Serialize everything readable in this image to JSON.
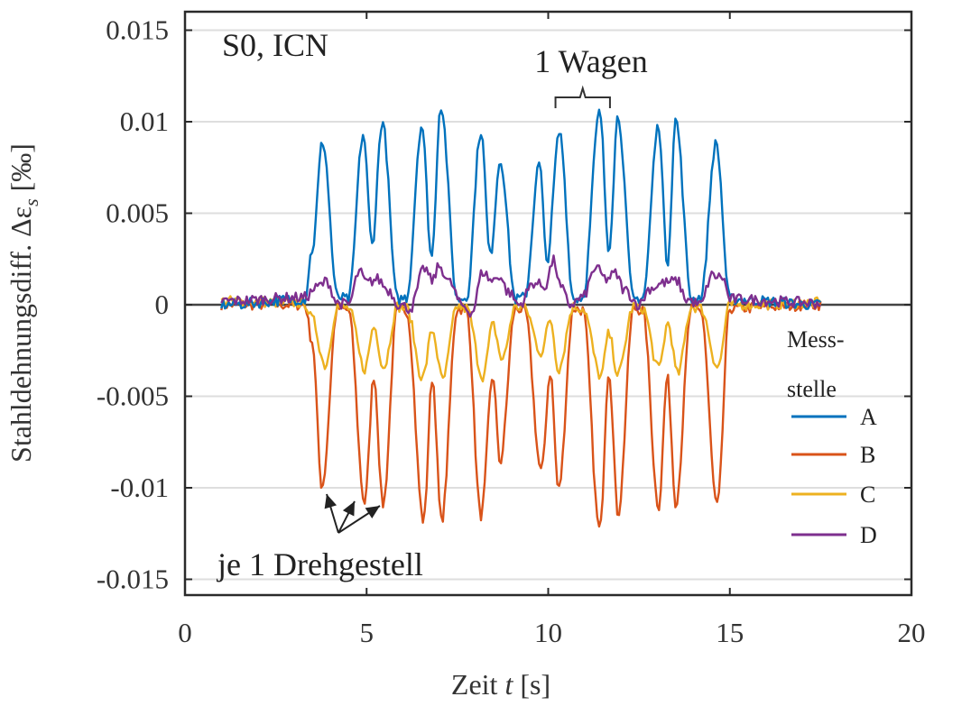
{
  "chart_data": {
    "type": "line",
    "title": "",
    "panel_label": "S0, ICN",
    "xlabel": "Zeit t [s]",
    "xlabel_parts": {
      "pre": "Zeit ",
      "var": "t",
      "post": " [s]"
    },
    "ylabel": "Stahldehnungsdiff. Δε_s [‰]",
    "ylabel_parts": {
      "pre": "Stahldehnungsdiff. Δε",
      "sub": "s",
      "post": " [‰]"
    },
    "xlim": [
      0,
      20
    ],
    "ylim": [
      -0.016,
      0.016
    ],
    "xticks": [
      0,
      5,
      10,
      15,
      20
    ],
    "xtick_labels": [
      "0",
      "5",
      "10",
      "15",
      "20"
    ],
    "yticks": [
      0.015,
      0.01,
      0.005,
      0,
      -0.005,
      -0.01,
      -0.015
    ],
    "ytick_labels": [
      "0.015",
      "0.01",
      "0.005",
      "0",
      "-0.005",
      "-0.01",
      "-0.015"
    ],
    "grid": true,
    "legend": {
      "title_line1": "Mess-",
      "title_line2": "stelle",
      "placement": "right-middle",
      "boxed": false
    },
    "annotations": {
      "wagen": "1 Wagen",
      "wagen_brace_x": [
        10.2,
        11.7
      ],
      "drehgestell": "je 1 Drehgestell",
      "drehgestell_targets": [
        [
          3.8,
          -0.0104
        ],
        [
          4.7,
          -0.0108
        ],
        [
          5.3,
          -0.011
        ]
      ]
    },
    "x_range_data": [
      1.0,
      17.5
    ],
    "series": [
      {
        "name": "A",
        "color": "#0072BD",
        "keypoints": [
          [
            1.0,
            0
          ],
          [
            3.3,
            0.0003
          ],
          [
            3.5,
            0.003
          ],
          [
            3.79,
            0.0089
          ],
          [
            4.2,
            0.0004
          ],
          [
            4.5,
            0.0003
          ],
          [
            4.91,
            0.0093
          ],
          [
            5.15,
            0.0033
          ],
          [
            5.43,
            0.01
          ],
          [
            5.85,
            0.0003
          ],
          [
            6.1,
            0.0004
          ],
          [
            6.52,
            0.0098
          ],
          [
            6.79,
            0.0026
          ],
          [
            7.04,
            0.0109
          ],
          [
            7.5,
            0.0003
          ],
          [
            7.75,
            0.0004
          ],
          [
            8.15,
            0.0095
          ],
          [
            8.4,
            0.0027
          ],
          [
            8.68,
            0.0079
          ],
          [
            9.1,
            0.0003
          ],
          [
            9.35,
            0.0004
          ],
          [
            9.76,
            0.0077
          ],
          [
            9.96,
            0.0024
          ],
          [
            10.31,
            0.0094
          ],
          [
            10.7,
            0.0003
          ],
          [
            10.95,
            0.0004
          ],
          [
            11.42,
            0.0105
          ],
          [
            11.67,
            0.0031
          ],
          [
            11.92,
            0.0103
          ],
          [
            12.35,
            0.0003
          ],
          [
            12.6,
            0.0004
          ],
          [
            13.04,
            0.0098
          ],
          [
            13.28,
            0.0023
          ],
          [
            13.51,
            0.0101
          ],
          [
            13.95,
            0.0003
          ],
          [
            14.2,
            0.0004
          ],
          [
            14.62,
            0.0088
          ],
          [
            15.0,
            0.0003
          ],
          [
            17.5,
            0
          ]
        ]
      },
      {
        "name": "B",
        "color": "#D95319",
        "keypoints": [
          [
            1.0,
            0
          ],
          [
            3.3,
            0
          ],
          [
            3.5,
            -0.002
          ],
          [
            3.77,
            -0.0099
          ],
          [
            4.2,
            -0.0002
          ],
          [
            4.5,
            -0.0003
          ],
          [
            4.95,
            -0.0108
          ],
          [
            5.2,
            -0.0039
          ],
          [
            5.45,
            -0.0109
          ],
          [
            5.85,
            -0.0002
          ],
          [
            6.1,
            -0.0003
          ],
          [
            6.57,
            -0.0118
          ],
          [
            6.81,
            -0.004
          ],
          [
            7.06,
            -0.0118
          ],
          [
            7.5,
            -0.0002
          ],
          [
            7.75,
            -0.0003
          ],
          [
            8.15,
            -0.0115
          ],
          [
            8.48,
            -0.0039
          ],
          [
            8.67,
            -0.0086
          ],
          [
            9.1,
            -0.0002
          ],
          [
            9.35,
            -0.0003
          ],
          [
            9.81,
            -0.0091
          ],
          [
            10.06,
            -0.0037
          ],
          [
            10.28,
            -0.0101
          ],
          [
            10.7,
            -0.0002
          ],
          [
            10.95,
            -0.0003
          ],
          [
            11.42,
            -0.0123
          ],
          [
            11.67,
            -0.0036
          ],
          [
            11.92,
            -0.0114
          ],
          [
            12.35,
            -0.0002
          ],
          [
            12.6,
            -0.0003
          ],
          [
            13.04,
            -0.011
          ],
          [
            13.28,
            -0.004
          ],
          [
            13.51,
            -0.0108
          ],
          [
            13.95,
            -0.0002
          ],
          [
            14.2,
            -0.0003
          ],
          [
            14.65,
            -0.011
          ],
          [
            15.0,
            -0.0002
          ],
          [
            17.5,
            0
          ]
        ]
      },
      {
        "name": "C",
        "color": "#EDB120",
        "keypoints": [
          [
            1.0,
            0.0002
          ],
          [
            3.3,
            0.0001
          ],
          [
            3.5,
            -0.0008
          ],
          [
            3.86,
            -0.0033
          ],
          [
            4.2,
            -0.0001
          ],
          [
            4.5,
            -0.0002
          ],
          [
            4.95,
            -0.0035
          ],
          [
            5.2,
            -0.0012
          ],
          [
            5.47,
            -0.0034
          ],
          [
            5.85,
            -0.0001
          ],
          [
            6.1,
            -0.0002
          ],
          [
            6.54,
            -0.004
          ],
          [
            6.81,
            -0.0014
          ],
          [
            7.09,
            -0.0041
          ],
          [
            7.5,
            -0.0001
          ],
          [
            7.75,
            -0.0002
          ],
          [
            8.2,
            -0.0039
          ],
          [
            8.48,
            -0.0011
          ],
          [
            8.73,
            -0.003
          ],
          [
            9.1,
            -0.0001
          ],
          [
            9.35,
            -0.0002
          ],
          [
            9.81,
            -0.0026
          ],
          [
            10.06,
            -0.0008
          ],
          [
            10.28,
            -0.0035
          ],
          [
            10.7,
            -0.0001
          ],
          [
            10.95,
            -0.0002
          ],
          [
            11.45,
            -0.0039
          ],
          [
            11.67,
            -0.0016
          ],
          [
            11.92,
            -0.0038
          ],
          [
            12.35,
            -0.0001
          ],
          [
            12.6,
            -0.0002
          ],
          [
            13.04,
            -0.0035
          ],
          [
            13.3,
            -0.001
          ],
          [
            13.56,
            -0.0038
          ],
          [
            13.95,
            -0.0001
          ],
          [
            14.2,
            -0.0002
          ],
          [
            14.67,
            -0.0034
          ],
          [
            15.0,
            0
          ],
          [
            17.5,
            0.0001
          ]
        ]
      },
      {
        "name": "D",
        "color": "#7E2F8E",
        "keypoints": [
          [
            1.0,
            0.0002
          ],
          [
            3.3,
            0.0004
          ],
          [
            3.6,
            0.0009
          ],
          [
            3.75,
            0.0011
          ],
          [
            3.9,
            0.0013
          ],
          [
            4.2,
            0.0001
          ],
          [
            4.5,
            0
          ],
          [
            4.8,
            0.0018
          ],
          [
            5.0,
            0.0012
          ],
          [
            5.3,
            0.0014
          ],
          [
            5.6,
            0.0008
          ],
          [
            5.9,
            0
          ],
          [
            6.2,
            -0.0002
          ],
          [
            6.6,
            0.002
          ],
          [
            6.8,
            0.0013
          ],
          [
            7.0,
            0.0021
          ],
          [
            7.3,
            0.0012
          ],
          [
            7.6,
            0
          ],
          [
            7.9,
            -0.0004
          ],
          [
            8.2,
            0.0018
          ],
          [
            8.45,
            0.0013
          ],
          [
            8.65,
            0.0016
          ],
          [
            8.9,
            0.0007
          ],
          [
            9.2,
            0
          ],
          [
            9.6,
            0.0012
          ],
          [
            9.9,
            0.001
          ],
          [
            10.15,
            0.0024
          ],
          [
            10.35,
            0.0009
          ],
          [
            10.6,
            0
          ],
          [
            10.95,
            0.0004
          ],
          [
            11.3,
            0.002
          ],
          [
            11.6,
            0.0014
          ],
          [
            11.85,
            0.0017
          ],
          [
            12.1,
            0.0008
          ],
          [
            12.5,
            0
          ],
          [
            12.8,
            0.0009
          ],
          [
            13.2,
            0.0012
          ],
          [
            13.55,
            0.0013
          ],
          [
            13.8,
            0.0003
          ],
          [
            14.2,
            0
          ],
          [
            14.5,
            0.0016
          ],
          [
            14.8,
            0.0015
          ],
          [
            15.0,
            0.0003
          ],
          [
            17.5,
            0.0001
          ]
        ]
      }
    ]
  }
}
